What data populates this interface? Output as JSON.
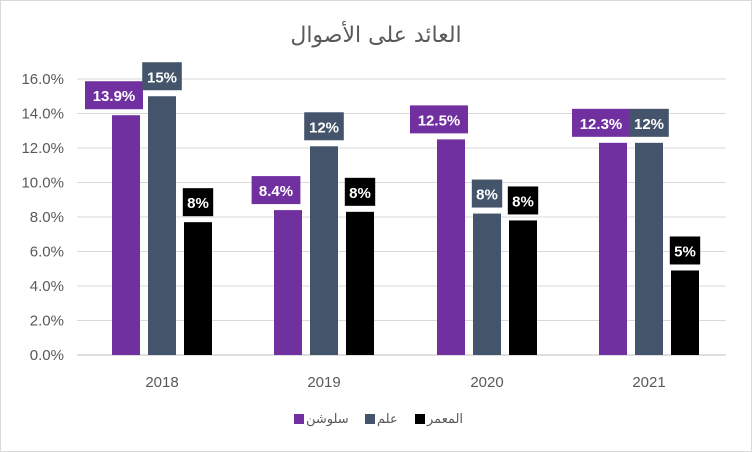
{
  "chart_data": {
    "type": "bar",
    "title": "العائد على الأصوال",
    "categories": [
      "2018",
      "2019",
      "2020",
      "2021"
    ],
    "series": [
      {
        "name": "سلوشن",
        "color": "#7030a0",
        "values": [
          13.9,
          8.4,
          12.5,
          12.3
        ],
        "labels": [
          "13.9%",
          "8.4%",
          "12.5%",
          "12.3%"
        ]
      },
      {
        "name": "علم",
        "color": "#44546a",
        "values": [
          15,
          12.1,
          8.2,
          12.3
        ],
        "labels": [
          "15%",
          "12%",
          "8%",
          "12%"
        ]
      },
      {
        "name": "المعمر",
        "color": "#000000",
        "values": [
          7.7,
          8.3,
          7.8,
          4.9
        ],
        "labels": [
          "8%",
          "8%",
          "8%",
          "5%"
        ]
      }
    ],
    "yticks": [
      "0.0%",
      "2.0%",
      "4.0%",
      "6.0%",
      "8.0%",
      "10.0%",
      "12.0%",
      "14.0%",
      "16.0%"
    ],
    "ylim": [
      0,
      16
    ],
    "grid": true,
    "legend_position": "bottom"
  }
}
